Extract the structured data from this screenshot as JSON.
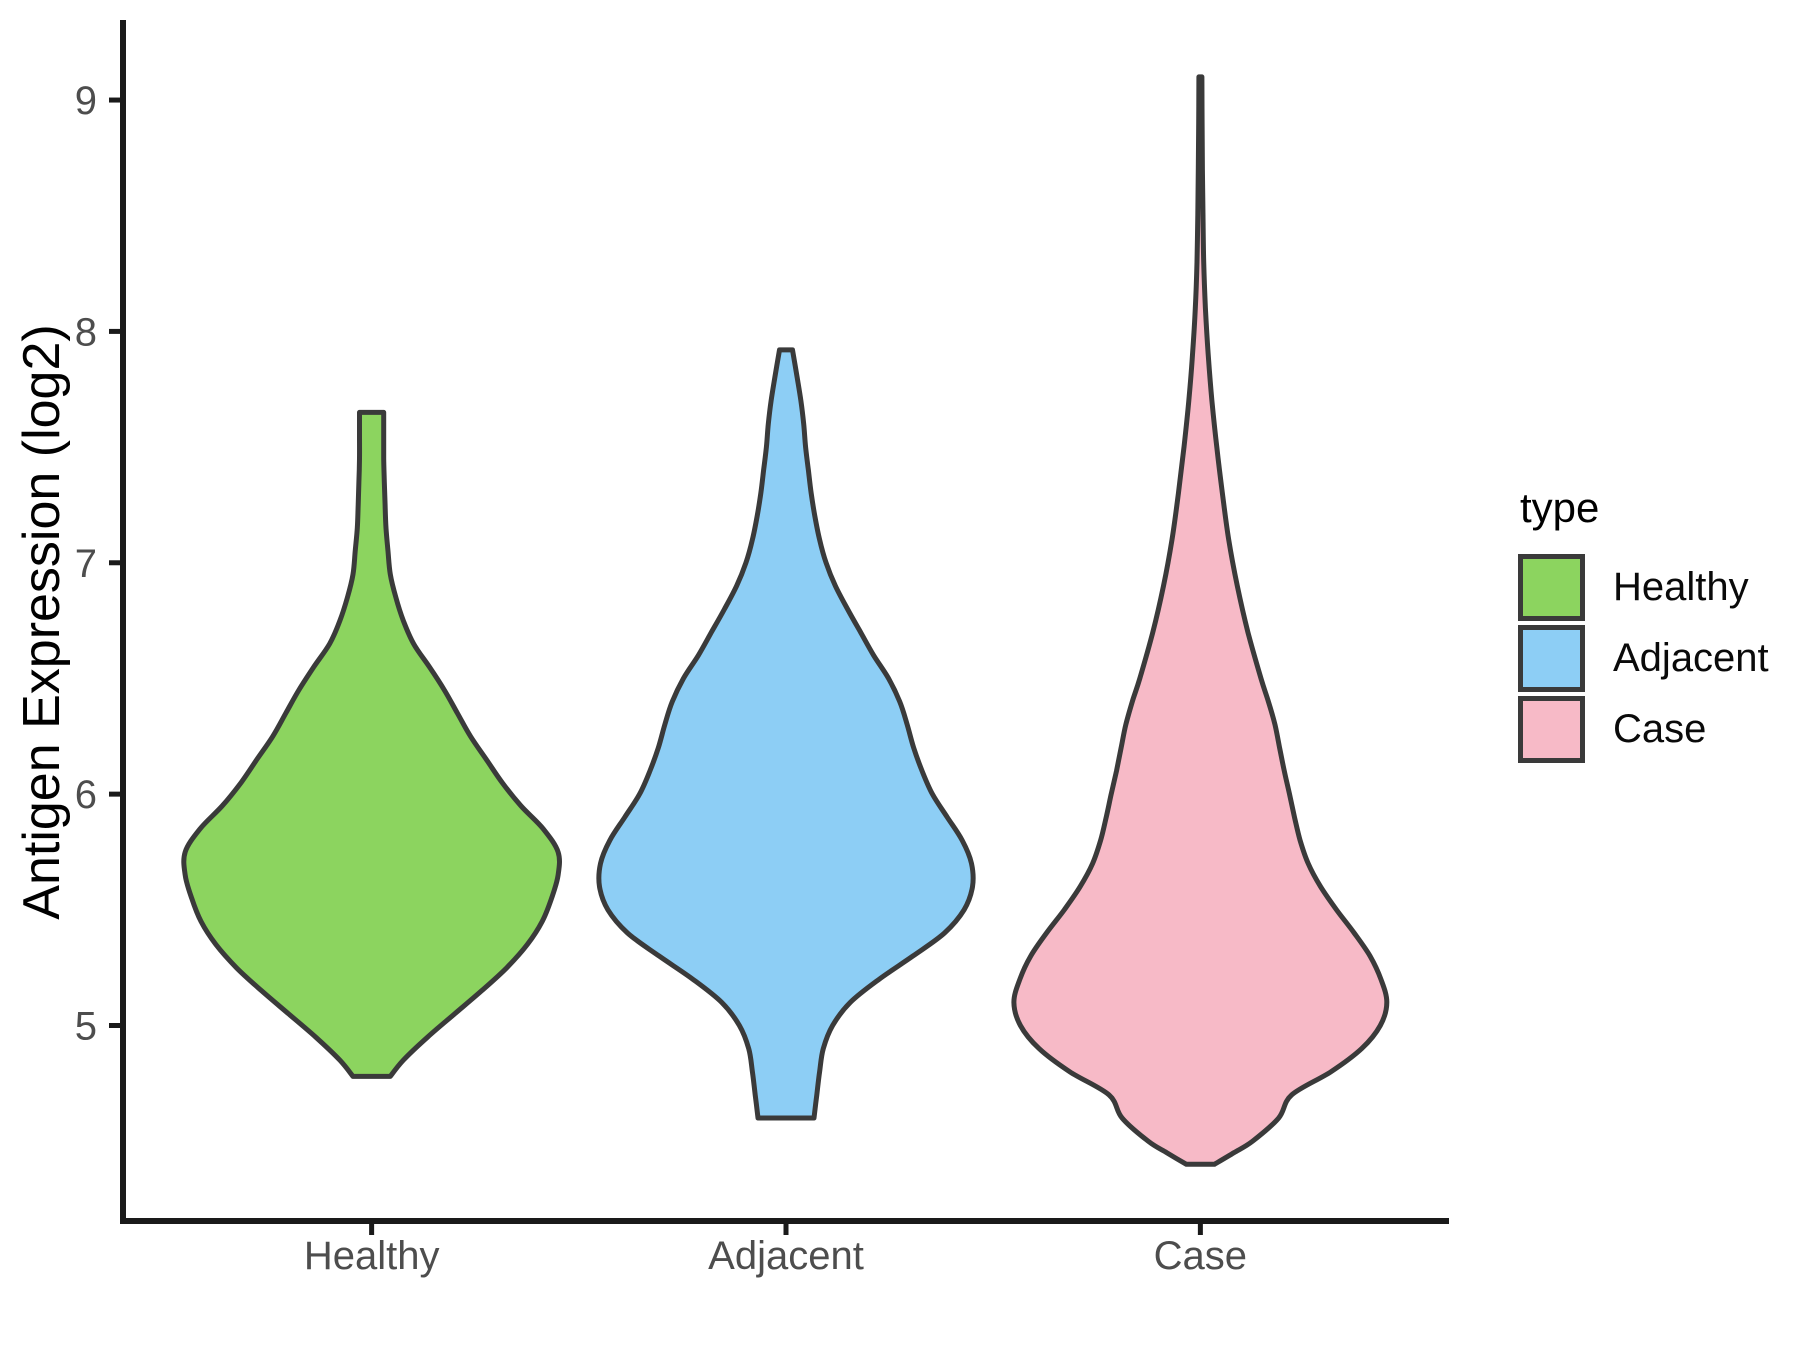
{
  "chart_data": {
    "type": "violin",
    "title": "",
    "xlabel": "",
    "ylabel": "Antigen Expression (log2)",
    "categories": [
      "Healthy",
      "Adjacent",
      "Case"
    ],
    "y_ticks": [
      5,
      6,
      7,
      8,
      9
    ],
    "ylim": [
      4.155,
      9.333
    ],
    "grid": false,
    "legend_position": "right-center",
    "legend": {
      "title": "type",
      "entries": [
        {
          "label": "Healthy",
          "color": "#8CD45F"
        },
        {
          "label": "Adjacent",
          "color": "#8DCEF5"
        },
        {
          "label": "Case",
          "color": "#F7BAC7"
        }
      ]
    },
    "outline_color": "#3A3A3A",
    "axis_color": "#1A1A1A",
    "tick_label_color": "#4D4D4D",
    "series": [
      {
        "name": "Healthy",
        "color": "#8CD45F",
        "min": 4.78,
        "max": 7.65,
        "peak_density_at": 5.75,
        "profile": [
          [
            7.65,
            0.065
          ],
          [
            7.55,
            0.065
          ],
          [
            7.45,
            0.065
          ],
          [
            7.35,
            0.068
          ],
          [
            7.25,
            0.072
          ],
          [
            7.15,
            0.077
          ],
          [
            7.05,
            0.088
          ],
          [
            6.95,
            0.1
          ],
          [
            6.85,
            0.13
          ],
          [
            6.75,
            0.17
          ],
          [
            6.65,
            0.225
          ],
          [
            6.55,
            0.31
          ],
          [
            6.45,
            0.39
          ],
          [
            6.35,
            0.46
          ],
          [
            6.25,
            0.53
          ],
          [
            6.15,
            0.615
          ],
          [
            6.05,
            0.7
          ],
          [
            5.95,
            0.8
          ],
          [
            5.85,
            0.92
          ],
          [
            5.75,
            1.0
          ],
          [
            5.65,
            1.0
          ],
          [
            5.55,
            0.965
          ],
          [
            5.45,
            0.915
          ],
          [
            5.35,
            0.835
          ],
          [
            5.25,
            0.725
          ],
          [
            5.15,
            0.59
          ],
          [
            5.05,
            0.445
          ],
          [
            4.95,
            0.3
          ],
          [
            4.85,
            0.17
          ],
          [
            4.78,
            0.1
          ]
        ]
      },
      {
        "name": "Adjacent",
        "color": "#8DCEF5",
        "min": 4.6,
        "max": 7.92,
        "peak_density_at": 5.63,
        "profile": [
          [
            7.92,
            0.035
          ],
          [
            7.8,
            0.06
          ],
          [
            7.7,
            0.08
          ],
          [
            7.6,
            0.095
          ],
          [
            7.5,
            0.105
          ],
          [
            7.4,
            0.12
          ],
          [
            7.3,
            0.135
          ],
          [
            7.2,
            0.155
          ],
          [
            7.1,
            0.18
          ],
          [
            7.0,
            0.215
          ],
          [
            6.9,
            0.265
          ],
          [
            6.8,
            0.33
          ],
          [
            6.7,
            0.4
          ],
          [
            6.6,
            0.47
          ],
          [
            6.5,
            0.55
          ],
          [
            6.4,
            0.61
          ],
          [
            6.3,
            0.65
          ],
          [
            6.2,
            0.685
          ],
          [
            6.1,
            0.73
          ],
          [
            6.0,
            0.785
          ],
          [
            5.9,
            0.865
          ],
          [
            5.8,
            0.945
          ],
          [
            5.7,
            0.995
          ],
          [
            5.6,
            1.0
          ],
          [
            5.5,
            0.955
          ],
          [
            5.4,
            0.85
          ],
          [
            5.3,
            0.68
          ],
          [
            5.2,
            0.5
          ],
          [
            5.1,
            0.345
          ],
          [
            5.0,
            0.25
          ],
          [
            4.9,
            0.2
          ],
          [
            4.8,
            0.18
          ],
          [
            4.7,
            0.165
          ],
          [
            4.6,
            0.15
          ]
        ]
      },
      {
        "name": "Case",
        "color": "#F7BAC7",
        "min": 4.4,
        "max": 9.1,
        "peak_density_at": 5.08,
        "profile": [
          [
            9.1,
            0.008
          ],
          [
            8.9,
            0.009
          ],
          [
            8.7,
            0.011
          ],
          [
            8.5,
            0.014
          ],
          [
            8.3,
            0.018
          ],
          [
            8.1,
            0.027
          ],
          [
            7.9,
            0.042
          ],
          [
            7.7,
            0.062
          ],
          [
            7.5,
            0.088
          ],
          [
            7.3,
            0.118
          ],
          [
            7.1,
            0.152
          ],
          [
            6.9,
            0.198
          ],
          [
            6.7,
            0.255
          ],
          [
            6.5,
            0.325
          ],
          [
            6.4,
            0.365
          ],
          [
            6.3,
            0.4
          ],
          [
            6.2,
            0.425
          ],
          [
            6.1,
            0.45
          ],
          [
            6.0,
            0.478
          ],
          [
            5.9,
            0.505
          ],
          [
            5.8,
            0.535
          ],
          [
            5.7,
            0.578
          ],
          [
            5.6,
            0.645
          ],
          [
            5.5,
            0.73
          ],
          [
            5.4,
            0.825
          ],
          [
            5.3,
            0.91
          ],
          [
            5.2,
            0.968
          ],
          [
            5.1,
            1.0
          ],
          [
            5.0,
            0.965
          ],
          [
            4.9,
            0.865
          ],
          [
            4.8,
            0.7
          ],
          [
            4.7,
            0.49
          ],
          [
            4.6,
            0.42
          ],
          [
            4.5,
            0.28
          ],
          [
            4.45,
            0.18
          ],
          [
            4.4,
            0.075
          ]
        ]
      }
    ]
  }
}
